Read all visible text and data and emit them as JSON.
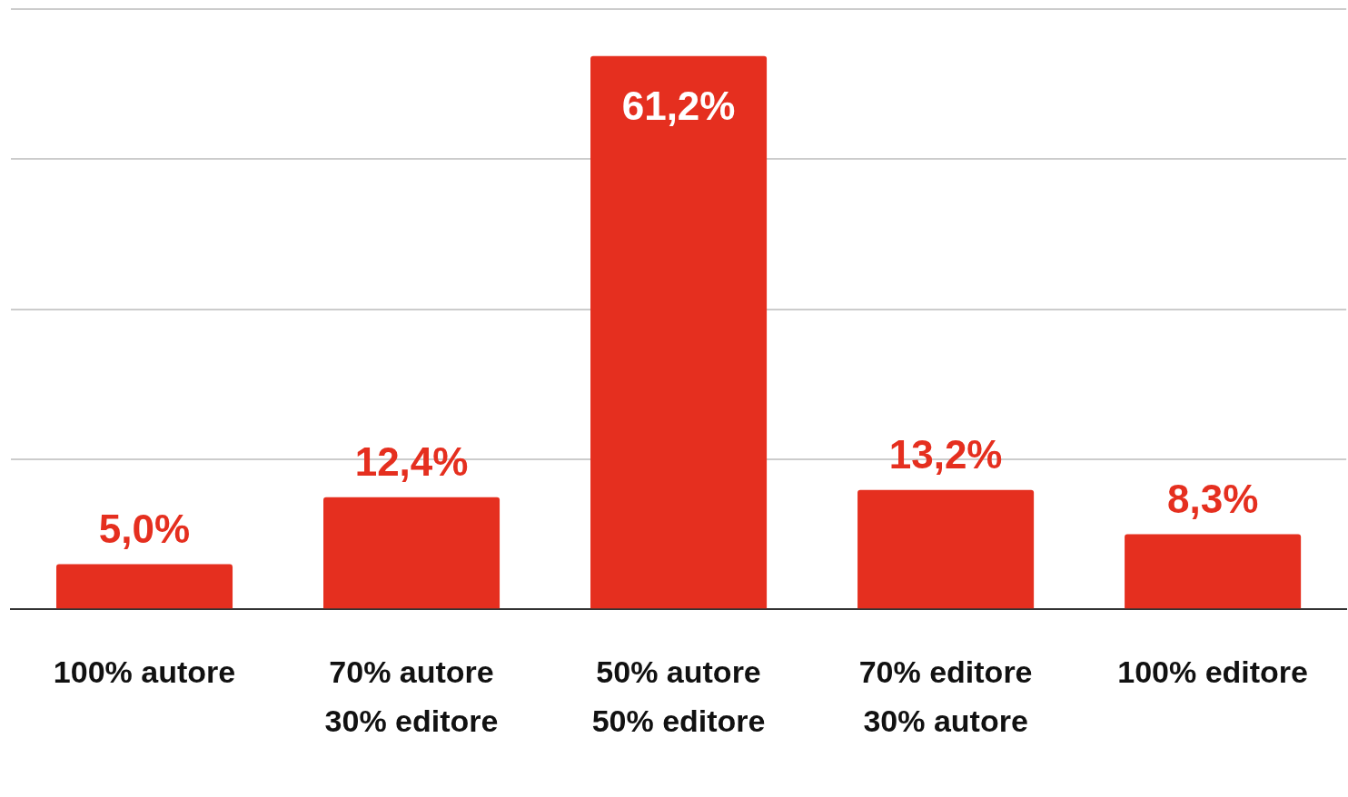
{
  "chart_data": {
    "type": "bar",
    "categories": [
      [
        "100% autore"
      ],
      [
        "70% autore",
        "30% editore"
      ],
      [
        "50% autore",
        "50% editore"
      ],
      [
        "70% editore",
        "30% autore"
      ],
      [
        "100% editore"
      ]
    ],
    "values": [
      5.0,
      12.4,
      61.2,
      13.2,
      8.3
    ],
    "color": "#e52f1f",
    "data_labels": true,
    "value_labels": [
      "5,0%",
      "12,4%",
      "61,2%",
      "13,2%",
      "8,3%"
    ],
    "ylim": [
      0,
      66.4
    ],
    "yticks": [
      {
        "value": 0,
        "label": null
      },
      {
        "value": 16.6,
        "label": null
      },
      {
        "value": 33.2,
        "label": null
      },
      {
        "value": 49.8,
        "label": null
      },
      {
        "value": 66.4,
        "label": null
      }
    ],
    "grid": "y",
    "legend": false
  }
}
